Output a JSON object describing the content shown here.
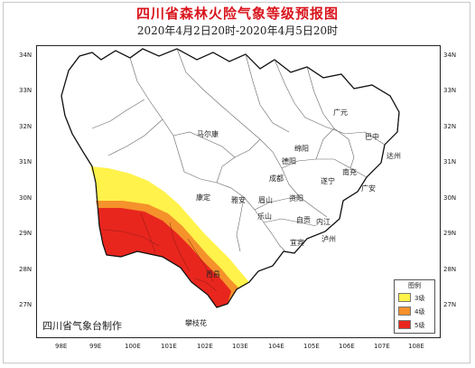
{
  "title": "四川省森林火险气象等级预报图",
  "subtitle": "2020年4月2日20时-2020年4月5日20时",
  "producer": "四川省气象台制作",
  "latitude_labels": [
    "34N",
    "33N",
    "32N",
    "31N",
    "30N",
    "29N",
    "28N",
    "27N"
  ],
  "longitude_labels": [
    "98E",
    "99E",
    "100E",
    "101E",
    "102E",
    "103E",
    "104E",
    "105E",
    "106E",
    "107E",
    "108E"
  ],
  "cities": [
    "广元",
    "马尔康",
    "巴中",
    "绵阳",
    "达州",
    "德阳",
    "南充",
    "成都",
    "遂宁",
    "康定",
    "雅安",
    "眉山",
    "资阳",
    "广安",
    "乐山",
    "自贡",
    "内江",
    "宜宾",
    "泸州",
    "西昌",
    "攀枝花"
  ],
  "legend": {
    "title": "图例",
    "items": [
      {
        "label": "3级",
        "color": "#fff24a"
      },
      {
        "label": "4级",
        "color": "#f5922b"
      },
      {
        "label": "5级",
        "color": "#e8261e"
      }
    ]
  },
  "colors": {
    "level3": "#fff24a",
    "level4": "#f5922b",
    "level5": "#e8261e",
    "title": "#d9141c"
  }
}
